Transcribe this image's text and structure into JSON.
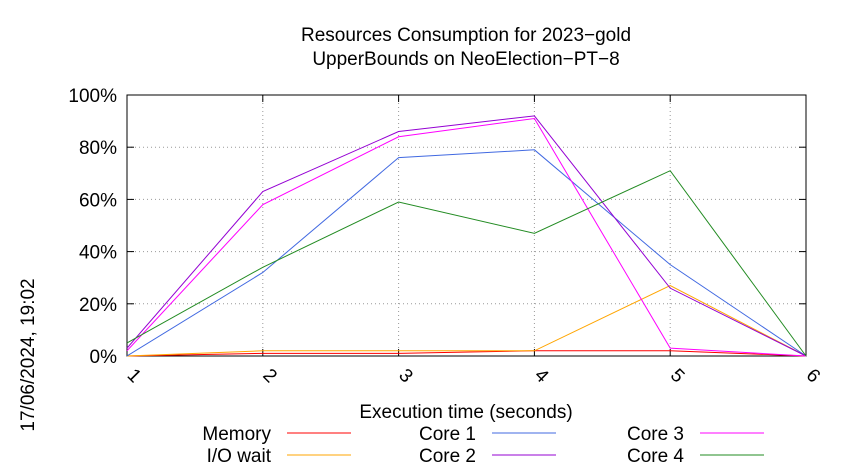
{
  "chart_data": {
    "type": "line",
    "title": "Resources Consumption for 2023−gold",
    "subtitle": "UpperBounds on NeoElection−PT−8",
    "xlabel": "Execution time (seconds)",
    "ylabel": "",
    "side_label": "17/06/2024, 19:02",
    "x": [
      1,
      2,
      3,
      4,
      5,
      6
    ],
    "x_tick_labels": [
      "1",
      "2",
      "3",
      "4",
      "5",
      "6"
    ],
    "xlim": [
      1,
      6
    ],
    "ylim": [
      0,
      100
    ],
    "y_tick_values": [
      0,
      20,
      40,
      60,
      80,
      100
    ],
    "y_tick_labels": [
      "0%",
      "20%",
      "40%",
      "60%",
      "80%",
      "100%"
    ],
    "grid": true,
    "legend_placement": "bottom",
    "series": [
      {
        "name": "Memory",
        "color": "#ff0000",
        "values": [
          0,
          1,
          1,
          2,
          2,
          0
        ]
      },
      {
        "name": "I/O wait",
        "color": "#ffa500",
        "values": [
          0,
          2,
          2,
          2,
          27,
          0
        ]
      },
      {
        "name": "Core 1",
        "color": "#4169e1",
        "values": [
          0,
          32,
          76,
          79,
          35,
          0
        ]
      },
      {
        "name": "Core 2",
        "color": "#9400d3",
        "values": [
          3,
          63,
          86,
          92,
          26,
          0
        ]
      },
      {
        "name": "Core 3",
        "color": "#ff00ff",
        "values": [
          2,
          58,
          84,
          91,
          3,
          0
        ]
      },
      {
        "name": "Core 4",
        "color": "#228b22",
        "values": [
          5,
          34,
          59,
          47,
          71,
          0
        ]
      }
    ]
  }
}
